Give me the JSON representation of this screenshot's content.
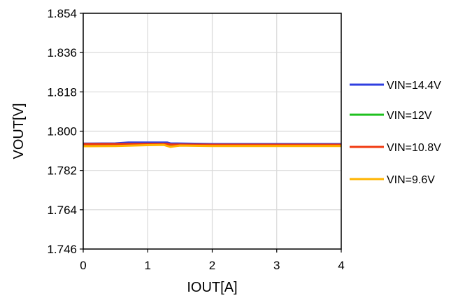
{
  "chart_data": {
    "type": "line",
    "title": "",
    "xlabel": "IOUT[A]",
    "ylabel": "VOUT[V]",
    "xlim": [
      0,
      4
    ],
    "ylim": [
      1.746,
      1.854
    ],
    "x_ticks": [
      0,
      1,
      2,
      3,
      4
    ],
    "x_tick_labels": [
      "0",
      "1",
      "2",
      "3",
      "4"
    ],
    "y_ticks": [
      1.746,
      1.764,
      1.782,
      1.8,
      1.818,
      1.836,
      1.854
    ],
    "y_tick_labels": [
      "1.746",
      "1.764",
      "1.782",
      "1.800",
      "1.818",
      "1.836",
      "1.854"
    ],
    "grid": true,
    "legend_position": "right",
    "series": [
      {
        "name": "VIN=14.4V",
        "color": "#2F3FE0",
        "x": [
          0,
          0.5,
          0.7,
          1.0,
          1.3,
          1.35,
          2.0,
          3.0,
          4.0
        ],
        "y": [
          1.7943,
          1.7944,
          1.7948,
          1.7948,
          1.7948,
          1.7944,
          1.7941,
          1.7941,
          1.7941
        ]
      },
      {
        "name": "VIN=12V",
        "color": "#1FC01F",
        "x": [
          0,
          0.5,
          1.0,
          1.3,
          1.35,
          2.0,
          3.0,
          4.0
        ],
        "y": [
          1.7938,
          1.7939,
          1.7941,
          1.7941,
          1.7938,
          1.7936,
          1.7936,
          1.7936
        ]
      },
      {
        "name": "VIN=10.8V",
        "color": "#F03A10",
        "x": [
          0,
          0.5,
          1.0,
          1.3,
          1.35,
          2.0,
          3.0,
          4.0
        ],
        "y": [
          1.7941,
          1.7941,
          1.7942,
          1.7942,
          1.7939,
          1.7938,
          1.7938,
          1.7938
        ]
      },
      {
        "name": "VIN=9.6V",
        "color": "#FFB400",
        "x": [
          0,
          0.5,
          1.0,
          1.25,
          1.35,
          1.5,
          2.0,
          3.0,
          4.0
        ],
        "y": [
          1.7931,
          1.7932,
          1.7936,
          1.7937,
          1.7928,
          1.7934,
          1.7932,
          1.7932,
          1.7932
        ]
      }
    ]
  }
}
